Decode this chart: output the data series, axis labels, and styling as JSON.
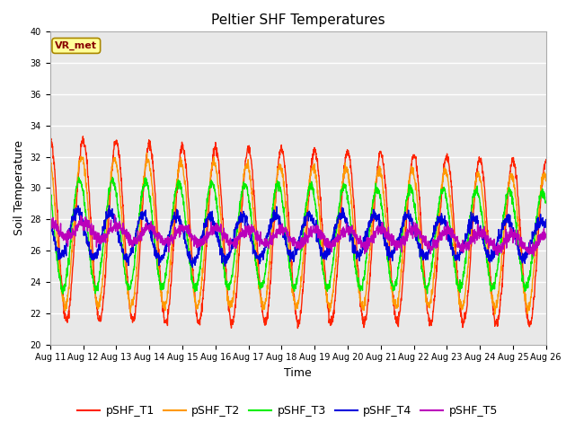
{
  "title": "Peltier SHF Temperatures",
  "ylabel": "Soil Temperature",
  "xlabel": "Time",
  "annotation": "VR_met",
  "ylim": [
    20,
    40
  ],
  "n_days": 15,
  "series_colors": {
    "pSHF_T1": "#ff2200",
    "pSHF_T2": "#ff9900",
    "pSHF_T3": "#00ee00",
    "pSHF_T4": "#0000dd",
    "pSHF_T5": "#bb00bb"
  },
  "legend_labels": [
    "pSHF_T1",
    "pSHF_T2",
    "pSHF_T3",
    "pSHF_T4",
    "pSHF_T5"
  ],
  "xtick_labels": [
    "Aug 11",
    "Aug 12",
    "Aug 13",
    "Aug 14",
    "Aug 15",
    "Aug 16",
    "Aug 17",
    "Aug 18",
    "Aug 19",
    "Aug 20",
    "Aug 21",
    "Aug 22",
    "Aug 23",
    "Aug 24",
    "Aug 25",
    "Aug 26"
  ],
  "bg_color": "#e8e8e8",
  "grid_color": "#ffffff",
  "fig_bg_color": "#ffffff",
  "title_fontsize": 11,
  "axis_fontsize": 9,
  "tick_fontsize": 7,
  "legend_fontsize": 9
}
